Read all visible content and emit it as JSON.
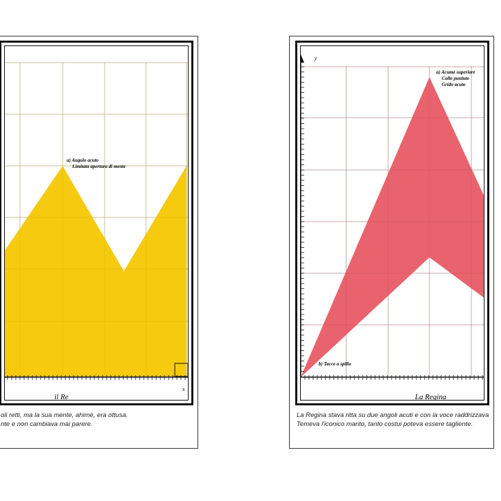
{
  "king": {
    "annotation_lines": [
      "a) Angolo acuto",
      "Limitata apertura di mente"
    ],
    "label": "il Re",
    "x_axis_letter": "x",
    "caption_lines": [
      "oli retti, ma la sua mente, ahimè, era ottusa.",
      "nte e non cambiava mai parere."
    ],
    "fill_color": "#f6ca0f"
  },
  "queen": {
    "annotation_lines": [
      "a) Acume superiore",
      "Collo puntuto",
      "Grido acuto"
    ],
    "bottom_annotation": "b) Tacco a spillo",
    "label": "La Regina",
    "y_axis_letter": "y",
    "caption_lines": [
      "La Regina stava ritta su due angoli acuti e con la voce raddrizzava",
      "Temeva l'iconico marito, tanto costui poteva essere tagliente."
    ],
    "fill_color": "#e8636d"
  }
}
